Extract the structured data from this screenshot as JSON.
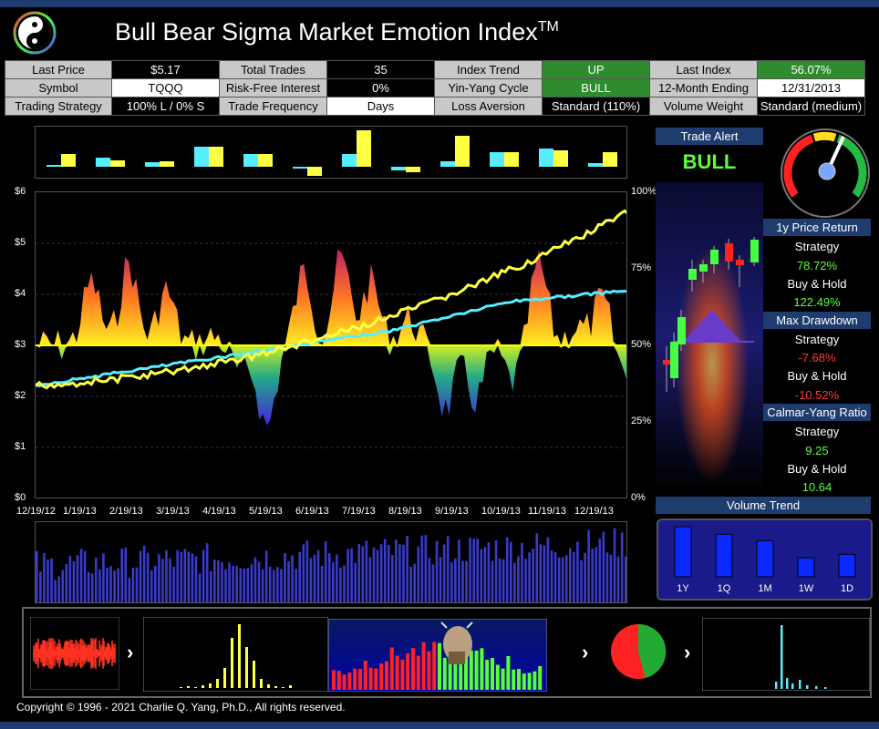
{
  "header": {
    "title": "Bull Bear Sigma Market Emotion Index",
    "title_mark": "TM"
  },
  "info_table": [
    [
      {
        "t": "Last Price",
        "k": "l"
      },
      {
        "t": "$5.17",
        "k": "n"
      },
      {
        "t": "Total Trades",
        "k": "l"
      },
      {
        "t": "35",
        "k": "n"
      },
      {
        "t": "Index Trend",
        "k": "l"
      },
      {
        "t": "UP",
        "k": "g"
      },
      {
        "t": "Last Index",
        "k": "l"
      },
      {
        "t": "56.07%",
        "k": "g"
      }
    ],
    [
      {
        "t": "Symbol",
        "k": "l"
      },
      {
        "t": "TQQQ",
        "k": "v"
      },
      {
        "t": "Risk-Free Interest",
        "k": "l"
      },
      {
        "t": "0%",
        "k": "n"
      },
      {
        "t": "Yin-Yang Cycle",
        "k": "l"
      },
      {
        "t": "BULL",
        "k": "g"
      },
      {
        "t": "12-Month Ending",
        "k": "l"
      },
      {
        "t": "12/31/2013",
        "k": "v"
      }
    ],
    [
      {
        "t": "Trading Strategy",
        "k": "l"
      },
      {
        "t": "100% L / 0% S",
        "k": "n"
      },
      {
        "t": "Trade Frequency",
        "k": "l"
      },
      {
        "t": "Days",
        "k": "v"
      },
      {
        "t": "Loss Aversion",
        "k": "l"
      },
      {
        "t": "Standard (110%)",
        "k": "n"
      },
      {
        "t": "Volume Weight",
        "k": "l"
      },
      {
        "t": "Standard (medium)",
        "k": "n"
      }
    ]
  ],
  "main_chart": {
    "y_left": [
      "$6",
      "$5",
      "$4",
      "$3",
      "$2",
      "$1",
      "$0"
    ],
    "y_right": [
      "100%",
      "75%",
      "50%",
      "25%",
      "0%"
    ],
    "x_labels": [
      "12/19/12",
      "1/19/13",
      "2/19/13",
      "3/19/13",
      "4/19/13",
      "5/19/13",
      "6/19/13",
      "7/19/13",
      "8/19/13",
      "9/19/13",
      "10/19/13",
      "11/19/13",
      "12/19/13"
    ]
  },
  "trade_alert": {
    "label": "Trade Alert",
    "value": "BULL"
  },
  "stats": {
    "price_return": {
      "title": "1y Price Return",
      "strategy_label": "Strategy",
      "strategy_value": "78.72%",
      "bh_label": "Buy & Hold",
      "bh_value": "122.49%"
    },
    "max_drawdown": {
      "title": "Max Drawdown",
      "strategy_label": "Strategy",
      "strategy_value": "-7.68%",
      "bh_label": "Buy & Hold",
      "bh_value": "-10.52%"
    },
    "calmar": {
      "title": "Calmar-Yang Ratio",
      "strategy_label": "Strategy",
      "strategy_value": "9.25",
      "bh_label": "Buy & Hold",
      "bh_value": "10.64"
    }
  },
  "volume_trend": {
    "title": "Volume Trend",
    "labels": [
      "1Y",
      "1Q",
      "1M",
      "1W",
      "1D"
    ],
    "values": [
      1.0,
      0.85,
      0.72,
      0.38,
      0.45
    ]
  },
  "footer": {
    "copyright": "Copyright © 1996 - 2021 Charlie Q. Yang, Ph.D., All rights reserved."
  },
  "colors": {
    "accent": "#1e3c6e",
    "green": "#2e8b2e",
    "yellow": "#ffff44",
    "cyan": "#55eeff"
  }
}
